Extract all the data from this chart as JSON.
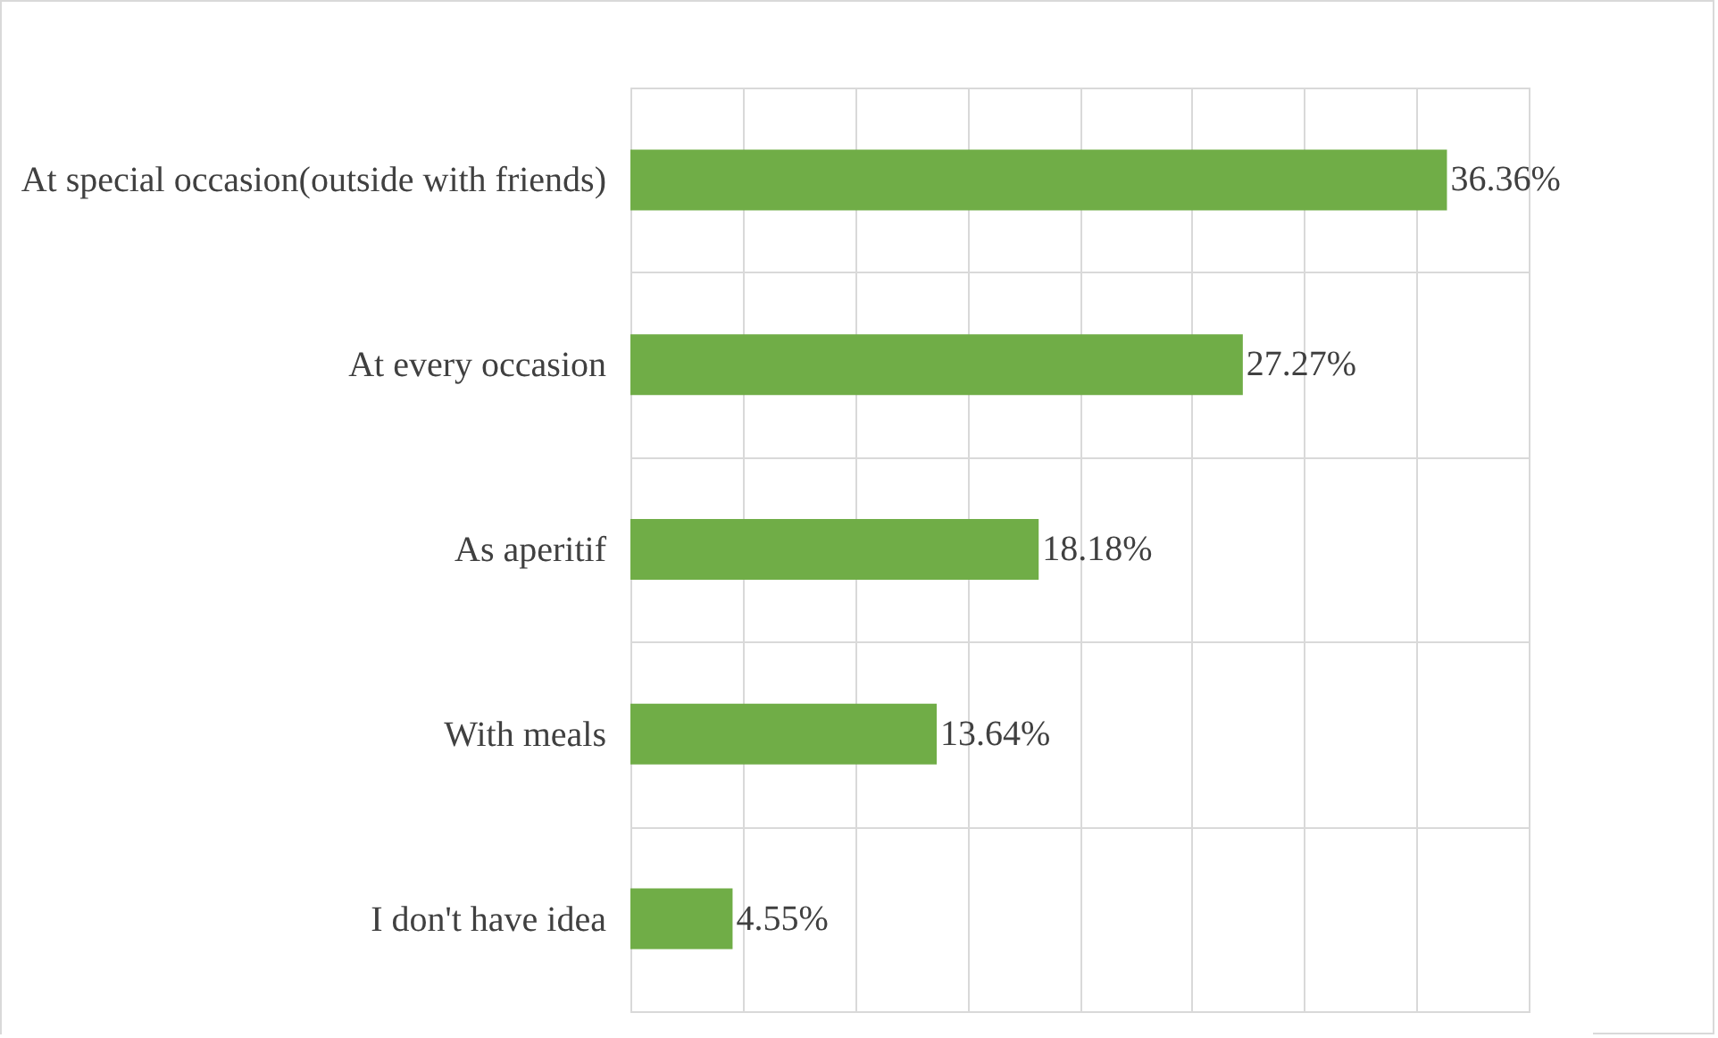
{
  "chart_data": {
    "type": "bar",
    "orientation": "horizontal",
    "categories": [
      "At special occasion(outside with friends)",
      "At every occasion",
      "As aperitif",
      "With meals",
      "I don't have idea"
    ],
    "values": [
      36.36,
      27.27,
      18.18,
      13.64,
      4.55
    ],
    "value_labels": [
      "36.36%",
      "27.27%",
      "18.18%",
      "13.64%",
      "4.55%"
    ],
    "color": "#70ad47",
    "xlim": [
      0,
      40
    ],
    "xticks": [
      {
        "value": 0,
        "label": null
      },
      {
        "value": 5,
        "label": null
      },
      {
        "value": 10,
        "label": null
      },
      {
        "value": 15,
        "label": null
      },
      {
        "value": 20,
        "label": null
      },
      {
        "value": 25,
        "label": null
      },
      {
        "value": 30,
        "label": null
      },
      {
        "value": 35,
        "label": null
      },
      {
        "value": 40,
        "label": null
      }
    ],
    "tick_labels": "y",
    "grid": true
  }
}
